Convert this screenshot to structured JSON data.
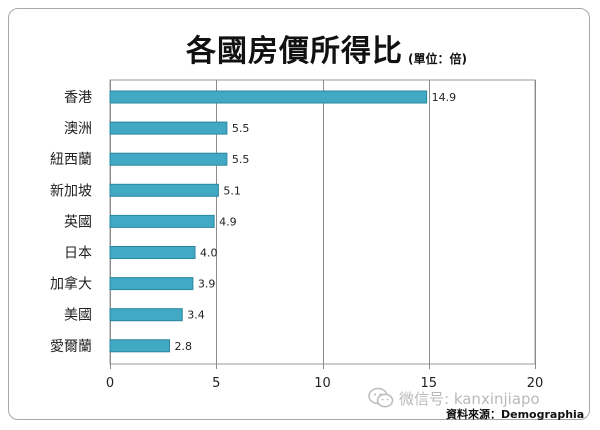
{
  "chart_data": {
    "type": "bar",
    "orientation": "horizontal",
    "title": "各國房價所得比",
    "unit": "(單位：倍)",
    "categories": [
      "香港",
      "澳洲",
      "紐西蘭",
      "新加坡",
      "英國",
      "日本",
      "加拿大",
      "美國",
      "愛爾蘭"
    ],
    "values": [
      14.9,
      5.5,
      5.5,
      5.1,
      4.9,
      4.0,
      3.9,
      3.4,
      2.8
    ],
    "xlim": [
      0,
      20
    ],
    "xticks": [
      0,
      5,
      10,
      15,
      20
    ],
    "grid": true,
    "legend": "none",
    "bar_color": "#41a9c3",
    "bar_edge_color": "#2b86a0"
  },
  "source": "資料來源：Demographia",
  "watermark": {
    "icon": "wechat-icon",
    "text": "微信号: kanxinjiapo"
  }
}
